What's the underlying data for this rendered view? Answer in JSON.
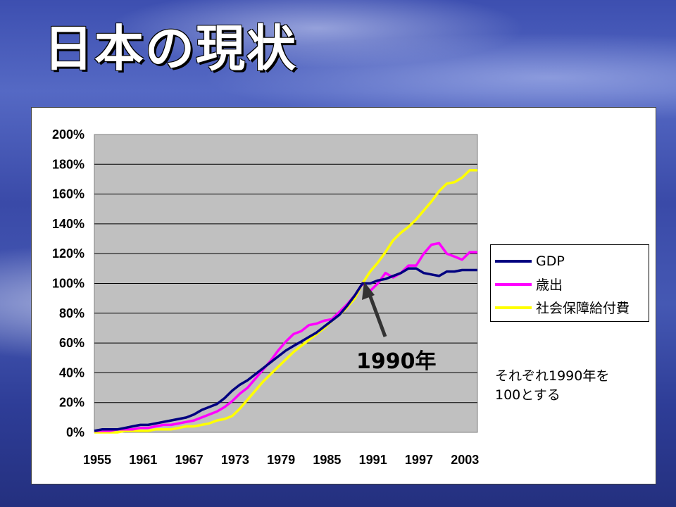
{
  "slide": {
    "title": "日本の現状"
  },
  "note": {
    "line1": "それぞれ1990年を",
    "line2": "100とする"
  },
  "annotation": {
    "label": "1990年",
    "x": 1990,
    "y": 100
  },
  "chart_data": {
    "type": "line",
    "title": "",
    "xlabel": "",
    "ylabel": "",
    "xlim": [
      1955,
      2005
    ],
    "ylim": [
      0,
      200
    ],
    "y_ticks": [
      "0%",
      "20%",
      "40%",
      "60%",
      "80%",
      "100%",
      "120%",
      "140%",
      "160%",
      "180%",
      "200%"
    ],
    "x_ticks": [
      "1955",
      "1961",
      "1967",
      "1973",
      "1979",
      "1985",
      "1991",
      "1997",
      "2003"
    ],
    "legend_position": "right",
    "plot_background": "#c0c0c0",
    "grid": true,
    "x": [
      1955,
      1956,
      1957,
      1958,
      1959,
      1960,
      1961,
      1962,
      1963,
      1964,
      1965,
      1966,
      1967,
      1968,
      1969,
      1970,
      1971,
      1972,
      1973,
      1974,
      1975,
      1976,
      1977,
      1978,
      1979,
      1980,
      1981,
      1982,
      1983,
      1984,
      1985,
      1986,
      1987,
      1988,
      1989,
      1990,
      1991,
      1992,
      1993,
      1994,
      1995,
      1996,
      1997,
      1998,
      1999,
      2000,
      2001,
      2002,
      2003,
      2004,
      2005
    ],
    "series": [
      {
        "name": "GDP",
        "color": "#000080",
        "values": [
          1,
          2,
          2,
          2,
          3,
          4,
          5,
          5,
          6,
          7,
          8,
          9,
          10,
          12,
          15,
          17,
          19,
          23,
          28,
          32,
          35,
          39,
          43,
          47,
          51,
          55,
          58,
          61,
          64,
          67,
          71,
          75,
          79,
          85,
          92,
          100,
          100,
          102,
          103,
          105,
          107,
          110,
          110,
          107,
          106,
          105,
          108,
          108,
          109,
          109,
          109
        ]
      },
      {
        "name": "歳出",
        "color": "#ff00ff",
        "values": [
          1,
          1,
          1,
          2,
          2,
          2,
          3,
          3,
          4,
          5,
          5,
          6,
          7,
          8,
          10,
          12,
          14,
          17,
          21,
          26,
          30,
          36,
          42,
          48,
          55,
          61,
          66,
          68,
          72,
          73,
          75,
          76,
          81,
          86,
          92,
          100,
          95,
          100,
          107,
          104,
          107,
          112,
          112,
          120,
          126,
          127,
          120,
          118,
          116,
          121,
          121
        ]
      },
      {
        "name": "社会保障給付費",
        "color": "#ffff00",
        "values": [
          0,
          0,
          0,
          0,
          1,
          1,
          1,
          1,
          2,
          2,
          2,
          3,
          4,
          4,
          5,
          6,
          8,
          9,
          11,
          16,
          22,
          28,
          34,
          39,
          44,
          49,
          54,
          58,
          62,
          66,
          70,
          75,
          79,
          84,
          90,
          100,
          108,
          114,
          121,
          129,
          134,
          138,
          143,
          149,
          155,
          162,
          167,
          168,
          171,
          176,
          176
        ]
      }
    ]
  }
}
